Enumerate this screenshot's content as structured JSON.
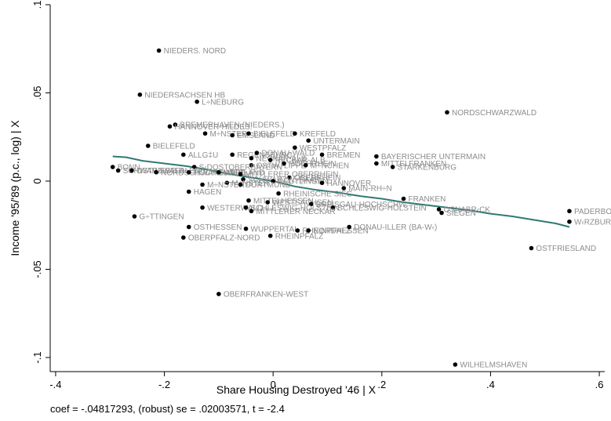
{
  "chart_data": {
    "type": "scatter",
    "xlabel": "Share Housing Destroyed '46 | X",
    "ylabel": "Income '95/'89 (p.c., log) | X",
    "note": "coef = -.04817293, (robust) se = .02003571, t = -2.4",
    "xlim": [
      -0.41,
      0.61
    ],
    "ylim": [
      -0.108,
      0.1
    ],
    "x_ticks": [
      {
        "value": -0.4,
        "label": "-.4"
      },
      {
        "value": -0.2,
        "label": "-.2"
      },
      {
        "value": 0,
        "label": "0"
      },
      {
        "value": 0.2,
        "label": ".2"
      },
      {
        "value": 0.4,
        "label": ".4"
      },
      {
        "value": 0.6,
        "label": ".6"
      }
    ],
    "y_ticks": [
      {
        "value": 0.1,
        "label": ".1"
      },
      {
        "value": 0.05,
        "label": ".05"
      },
      {
        "value": 0,
        "label": "0"
      },
      {
        "value": -0.05,
        "label": "-.05"
      },
      {
        "value": -0.1,
        "label": "-.1"
      }
    ],
    "grid": false,
    "point_color": "#000000",
    "label_color": "#8c8c8c",
    "fit_color": "#2f7a72",
    "points": [
      {
        "x": -0.21,
        "y": 0.074,
        "label": "NIEDERS. NORD"
      },
      {
        "x": -0.245,
        "y": 0.049,
        "label": "NIEDERSACHSEN HB"
      },
      {
        "x": -0.14,
        "y": 0.045,
        "label": "L÷NEBURG"
      },
      {
        "x": 0.32,
        "y": 0.039,
        "label": "NORDSCHWARZWALD"
      },
      {
        "x": -0.18,
        "y": 0.032,
        "label": "BREMERHAVEN (NIEDERS.)"
      },
      {
        "x": -0.19,
        "y": 0.031,
        "label": "HANNOVER-HILDES."
      },
      {
        "x": -0.125,
        "y": 0.027,
        "label": "M÷NSTER"
      },
      {
        "x": -0.075,
        "y": 0.026,
        "label": "EMSLAND"
      },
      {
        "x": -0.045,
        "y": 0.027,
        "label": "BIELEFELD"
      },
      {
        "x": 0.04,
        "y": 0.027,
        "label": "KREFELD"
      },
      {
        "x": 0.065,
        "y": 0.023,
        "label": "UNTERMAIN"
      },
      {
        "x": -0.23,
        "y": 0.02,
        "label": "BIELEFELD"
      },
      {
        "x": 0.04,
        "y": 0.019,
        "label": "WESTPFALZ"
      },
      {
        "x": -0.165,
        "y": 0.015,
        "label": "ALLG‡U"
      },
      {
        "x": -0.075,
        "y": 0.015,
        "label": "REGENSBURG"
      },
      {
        "x": -0.03,
        "y": 0.016,
        "label": "DONAU-WALD"
      },
      {
        "x": 0.09,
        "y": 0.015,
        "label": "BREMEN"
      },
      {
        "x": 0.19,
        "y": 0.014,
        "label": "BAYERISCHER UNTERMAIN"
      },
      {
        "x": 0.19,
        "y": 0.01,
        "label": "MITTELFRANKEN"
      },
      {
        "x": 0.22,
        "y": 0.008,
        "label": "STARKENBURG"
      },
      {
        "x": -0.04,
        "y": 0.013,
        "label": "NECKAR-ALB"
      },
      {
        "x": -0.005,
        "y": 0.012,
        "label": "NECKAR-ALB"
      },
      {
        "x": -0.04,
        "y": 0.009,
        "label": "OSTW.-LIPPE"
      },
      {
        "x": 0.02,
        "y": 0.01,
        "label": "HOCHRHEIN"
      },
      {
        "x": 0.06,
        "y": 0.009,
        "label": "M÷NCHEN"
      },
      {
        "x": -0.145,
        "y": 0.008,
        "label": "S‹DOSTOBERBAYERN"
      },
      {
        "x": -0.295,
        "y": 0.008,
        "label": "BONN"
      },
      {
        "x": -0.285,
        "y": 0.006,
        "label": "SCHWARZWALD"
      },
      {
        "x": -0.26,
        "y": 0.006,
        "label": "OSTWESTFALEN"
      },
      {
        "x": -0.215,
        "y": 0.005,
        "label": "NORDSCHWARZWALD"
      },
      {
        "x": -0.155,
        "y": 0.005,
        "label": "HOCHSAUERLAND"
      },
      {
        "x": -0.1,
        "y": 0.005,
        "label": "LIPPE"
      },
      {
        "x": -0.06,
        "y": 0.004,
        "label": "MITTLERER OBERRHEIN"
      },
      {
        "x": 0.03,
        "y": 0.002,
        "label": "OBERRHEIN"
      },
      {
        "x": -0.055,
        "y": 0.001,
        "label": "SCHWARZW.-BAAR"
      },
      {
        "x": 0.0,
        "y": 0.0,
        "label": "REUTLINGEN"
      },
      {
        "x": 0.09,
        "y": -0.001,
        "label": "HANNOVER"
      },
      {
        "x": -0.085,
        "y": -0.001,
        "label": "M÷NSTER"
      },
      {
        "x": -0.13,
        "y": -0.002,
        "label": "M÷NSTER"
      },
      {
        "x": -0.06,
        "y": -0.002,
        "label": "DORTMUND"
      },
      {
        "x": 0.13,
        "y": -0.004,
        "label": "MAIN-RH÷N"
      },
      {
        "x": -0.155,
        "y": -0.006,
        "label": "HAGEN"
      },
      {
        "x": 0.01,
        "y": -0.007,
        "label": "RHEINISCHE SIEG"
      },
      {
        "x": 0.24,
        "y": -0.01,
        "label": "FRANKEN"
      },
      {
        "x": -0.045,
        "y": -0.011,
        "label": "MITTELHESSEN"
      },
      {
        "x": -0.01,
        "y": -0.012,
        "label": "WESTSACHSEN"
      },
      {
        "x": 0.07,
        "y": -0.013,
        "label": "BREISGAU-HOCHSCHW."
      },
      {
        "x": -0.13,
        "y": -0.015,
        "label": "WESTERWALD"
      },
      {
        "x": -0.05,
        "y": -0.015,
        "label": "SCHLESWIG-HOLSTEIN"
      },
      {
        "x": 0.11,
        "y": -0.015,
        "label": "SCHLESWIG-HOLSTEIN"
      },
      {
        "x": -0.04,
        "y": -0.017,
        "label": "MITTLERER NECKAR"
      },
      {
        "x": 0.305,
        "y": -0.016,
        "label": "OSNABR‹CK"
      },
      {
        "x": 0.31,
        "y": -0.018,
        "label": "SIEGEN"
      },
      {
        "x": 0.545,
        "y": -0.017,
        "label": "PADERBORN"
      },
      {
        "x": 0.545,
        "y": -0.023,
        "label": "W‹RZBURG"
      },
      {
        "x": -0.255,
        "y": -0.02,
        "label": "G÷TTINGEN"
      },
      {
        "x": -0.155,
        "y": -0.026,
        "label": "OSTHESSEN"
      },
      {
        "x": -0.05,
        "y": -0.027,
        "label": "WUPPERTAL"
      },
      {
        "x": 0.045,
        "y": -0.028,
        "label": "RHEINPFALZ"
      },
      {
        "x": 0.065,
        "y": -0.028,
        "label": "NORDHESSEN"
      },
      {
        "x": 0.14,
        "y": -0.026,
        "label": "DONAU-ILLER (BA-W‹)"
      },
      {
        "x": -0.165,
        "y": -0.032,
        "label": "OBERPFALZ-NORD"
      },
      {
        "x": -0.005,
        "y": -0.031,
        "label": "RHEINPFALZ"
      },
      {
        "x": 0.475,
        "y": -0.038,
        "label": "OSTFRIESLAND"
      },
      {
        "x": -0.1,
        "y": -0.064,
        "label": "OBERFRANKEN-WEST"
      },
      {
        "x": 0.335,
        "y": -0.104,
        "label": "WILHELMSHAVEN"
      }
    ],
    "fit_line": [
      {
        "x": -0.295,
        "y": 0.014
      },
      {
        "x": -0.27,
        "y": 0.0135
      },
      {
        "x": -0.24,
        "y": 0.0115
      },
      {
        "x": -0.2,
        "y": 0.01
      },
      {
        "x": -0.16,
        "y": 0.0085
      },
      {
        "x": -0.12,
        "y": 0.0065
      },
      {
        "x": -0.08,
        "y": 0.004
      },
      {
        "x": -0.04,
        "y": 0.002
      },
      {
        "x": 0.0,
        "y": 0.0
      },
      {
        "x": 0.04,
        "y": -0.003
      },
      {
        "x": 0.08,
        "y": -0.005
      },
      {
        "x": 0.12,
        "y": -0.0065
      },
      {
        "x": 0.16,
        "y": -0.0085
      },
      {
        "x": 0.2,
        "y": -0.01
      },
      {
        "x": 0.24,
        "y": -0.012
      },
      {
        "x": 0.28,
        "y": -0.0135
      },
      {
        "x": 0.32,
        "y": -0.015
      },
      {
        "x": 0.36,
        "y": -0.0165
      },
      {
        "x": 0.4,
        "y": -0.0185
      },
      {
        "x": 0.44,
        "y": -0.02
      },
      {
        "x": 0.48,
        "y": -0.022
      },
      {
        "x": 0.52,
        "y": -0.024
      },
      {
        "x": 0.545,
        "y": -0.026
      }
    ]
  }
}
